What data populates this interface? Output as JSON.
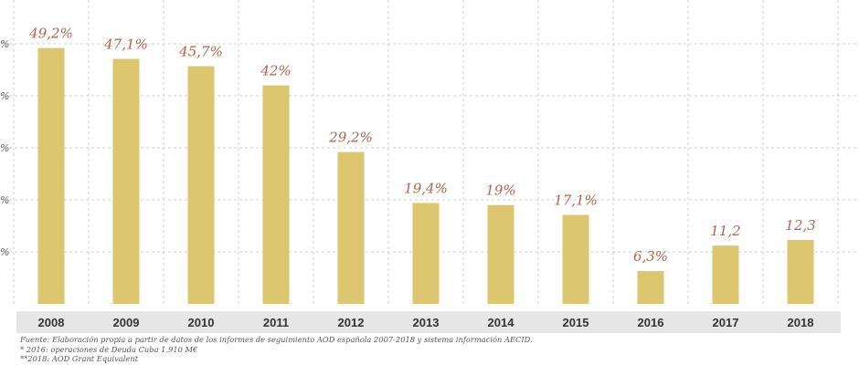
{
  "chart_data": {
    "type": "bar",
    "categories": [
      "2008",
      "2009",
      "2010",
      "2011",
      "2012",
      "2013",
      "2014",
      "2015",
      "2016",
      "2017",
      "2018"
    ],
    "values": [
      49.2,
      47.1,
      45.7,
      42,
      29.2,
      19.4,
      19,
      17.1,
      6.3,
      11.2,
      12.3
    ],
    "value_labels": [
      "49,2%",
      "47,1%",
      "45,7%",
      "42%",
      "29,2%",
      "19,4%",
      "19%",
      "17,1%",
      "6,3%",
      "11,2",
      "12,3"
    ],
    "y_tick_labels": [
      "%",
      "%",
      "%",
      "%",
      "%"
    ],
    "ylim": [
      0,
      55
    ],
    "grid": true,
    "colors": {
      "bar": "#dcc770",
      "label": "#b5634b",
      "axis_band": "#e6e6e6"
    }
  },
  "footnotes": {
    "source": "Fuente: Elaboración propia a partir de datos de los informes de seguimiento AOD española 2007-2018 y sistema información AECID.",
    "note1": "* 2016: operaciones de Deuda Cuba 1.910 M€",
    "note2": "**2018: AOD Grant Equivalent"
  }
}
